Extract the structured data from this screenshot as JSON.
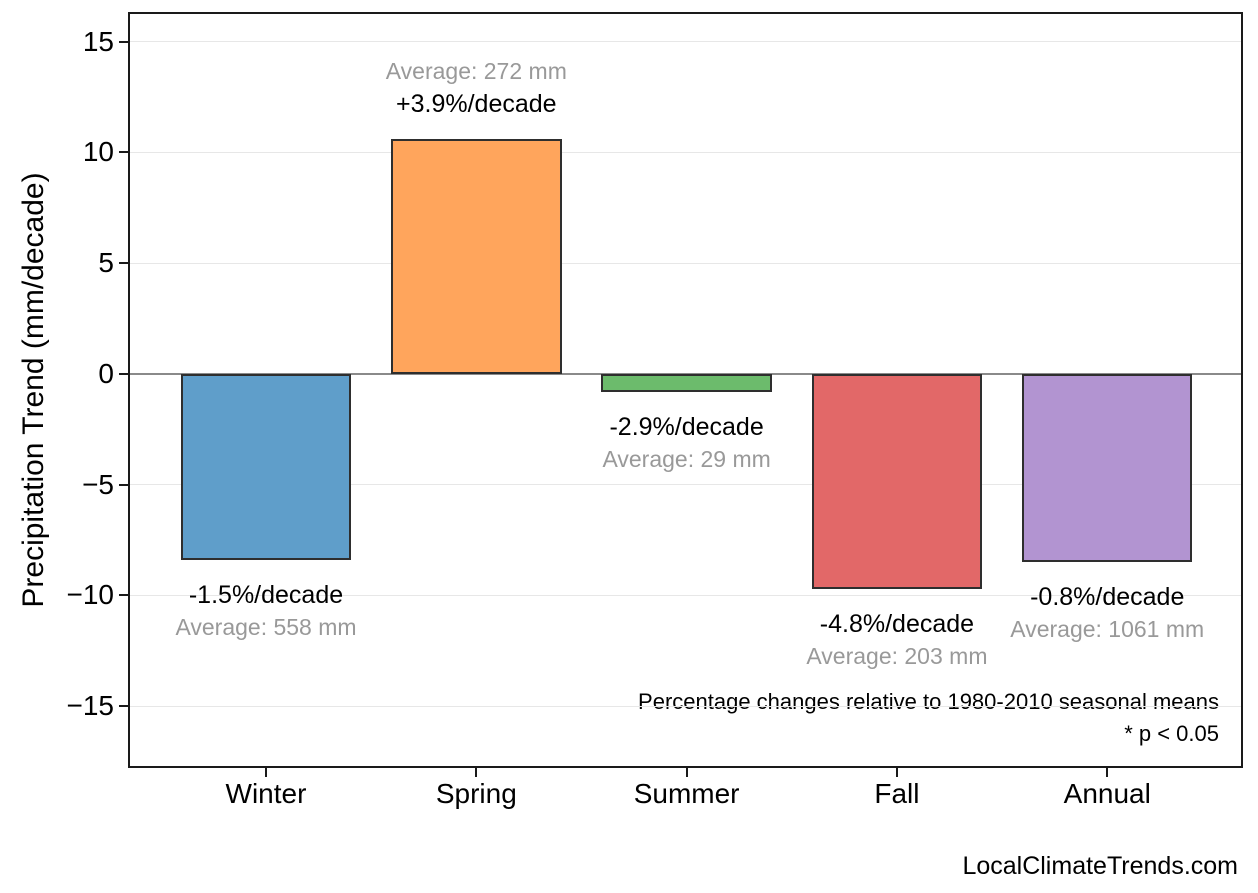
{
  "chart_data": {
    "type": "bar",
    "title": "",
    "ylabel": "Precipitation Trend (mm/decade)",
    "xlabel": "",
    "categories": [
      "Winter",
      "Spring",
      "Summer",
      "Fall",
      "Annual"
    ],
    "values": [
      -8.4,
      10.6,
      -0.8,
      -9.7,
      -8.5
    ],
    "bar_colors": [
      "#5F9ECA",
      "#FFA55C",
      "#6CBB6C",
      "#E26868",
      "#B294D1"
    ],
    "bar_edge_color": "#2E2E2E",
    "bar_labels": [
      {
        "trend": "-1.5%/decade",
        "average": "Average: 558 mm"
      },
      {
        "trend": "+3.9%/decade",
        "average": "Average: 272 mm"
      },
      {
        "trend": "-2.9%/decade",
        "average": "Average: 29 mm"
      },
      {
        "trend": "-4.8%/decade",
        "average": "Average: 203 mm"
      },
      {
        "trend": "-0.8%/decade",
        "average": "Average: 1061 mm"
      }
    ],
    "yticks": [
      15,
      10,
      5,
      0,
      -5,
      -10,
      -15
    ],
    "ylim": [
      -17.7,
      16.25
    ],
    "grid": true,
    "gridline_color": "#E7E7E7",
    "zero_line_color": "#8A8A8A",
    "trend_label_color": "#000000",
    "average_label_color": "#999999",
    "annotation_line1": "Percentage changes relative to 1980-2010 seasonal means",
    "annotation_line2": "* p < 0.05",
    "legend_position": "none"
  },
  "footer": {
    "watermark": "LocalClimateTrends.com"
  }
}
